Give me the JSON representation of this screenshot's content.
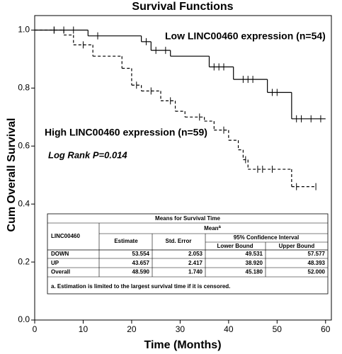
{
  "chart_data": {
    "type": "km",
    "title": "Survival Functions",
    "y_label": "Cum Overall Survival",
    "x_label": "Time (Months)",
    "annotations": [
      "Low LINC00460 expression (n=54)",
      "High LINC00460 expression (n=59)",
      "Log Rank P=0.014"
    ],
    "xlim": [
      0,
      61.2
    ],
    "ylim": [
      0,
      1.05
    ],
    "xticks": [
      0,
      10,
      20,
      30,
      40,
      50,
      60
    ],
    "yticks": [
      {
        "value": 0,
        "label": "0.0"
      },
      0.2,
      0.4,
      0.6,
      0.8,
      {
        "value": 1,
        "label": "1.0"
      }
    ],
    "series": [
      {
        "line_style": "solid",
        "color": "#000000",
        "x": [
          0,
          11,
          22,
          24,
          28,
          36,
          41,
          48,
          53,
          60
        ],
        "values": [
          1.0,
          0.98,
          0.96,
          0.93,
          0.91,
          0.873,
          0.83,
          0.785,
          0.694,
          0.694
        ],
        "censored": {
          "x": [
            4,
            6,
            8,
            13,
            23,
            25,
            27,
            37,
            38,
            39,
            43,
            44,
            45,
            49,
            50,
            54,
            55,
            57,
            59
          ],
          "values": [
            1.0,
            1.0,
            1.0,
            0.98,
            0.96,
            0.93,
            0.93,
            0.873,
            0.873,
            0.873,
            0.83,
            0.83,
            0.83,
            0.785,
            0.785,
            0.694,
            0.694,
            0.694,
            0.694
          ]
        }
      },
      {
        "line_style": "dashed",
        "color": "#000000",
        "x": [
          0,
          6,
          8,
          12,
          18,
          20,
          22,
          26,
          29,
          31,
          35,
          37,
          40,
          42,
          43,
          44,
          53,
          58
        ],
        "values": [
          1.0,
          0.983,
          0.949,
          0.91,
          0.868,
          0.81,
          0.79,
          0.756,
          0.72,
          0.7,
          0.686,
          0.655,
          0.62,
          0.587,
          0.553,
          0.52,
          0.46,
          0.46
        ],
        "censored": {
          "x": [
            4,
            10,
            21,
            24,
            28,
            34,
            39,
            43.5,
            46,
            47,
            49,
            54,
            58
          ],
          "values": [
            1.0,
            0.949,
            0.81,
            0.79,
            0.756,
            0.7,
            0.655,
            0.553,
            0.52,
            0.52,
            0.52,
            0.46,
            0.46
          ]
        }
      }
    ]
  },
  "table": {
    "title": "Means for Survival Time",
    "group": "Mean",
    "group_note": "a",
    "row_label": "LINC00460",
    "columns": [
      "Estimate",
      "Std. Error"
    ],
    "ci": "95% Confidence Interval",
    "ci_columns": [
      "Lower Bound",
      "Upper Bound"
    ],
    "rows": [
      [
        "DOWN",
        "53.554",
        "2.053",
        "49.531",
        "57.577"
      ],
      [
        "UP",
        "43.657",
        "2.417",
        "38.920",
        "48.393"
      ],
      [
        "Overall",
        "48.590",
        "1.740",
        "45.180",
        "52.000"
      ]
    ],
    "footnote": "a. Estimation is limited to the largest survival time if it is censored."
  }
}
